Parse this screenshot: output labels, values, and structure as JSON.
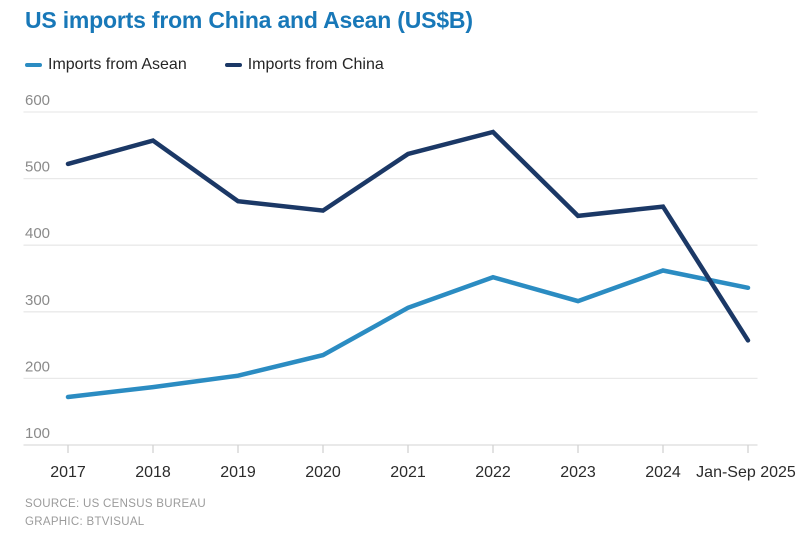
{
  "title": "US imports from China and Asean (US$B)",
  "legend": [
    {
      "label": "Imports from Asean",
      "color": "#2b8cc2"
    },
    {
      "label": "Imports from China",
      "color": "#1b3866"
    }
  ],
  "source": {
    "line1": "SOURCE: US CENSUS BUREAU",
    "line2": "GRAPHIC: BTVISUAL"
  },
  "colors": {
    "title_blue": "#1878b8",
    "asean_line": "#2b8cc2",
    "china_line": "#1b3866",
    "gridline": "#e9e9e9",
    "baseline": "#dcdcdc",
    "tick": "#cfcfcf",
    "y_label": "#8a8a8a",
    "x_label": "#2b2b2b",
    "background": "#ffffff"
  },
  "chart_data": {
    "type": "line",
    "title": "US imports from China and Asean (US$B)",
    "categories": [
      "2017",
      "2018",
      "2019",
      "2020",
      "2021",
      "2022",
      "2023",
      "2024",
      "Jan-Sep 2025"
    ],
    "series": [
      {
        "name": "Imports from Asean",
        "color": "#2b8cc2",
        "values": [
          172,
          187,
          204,
          235,
          306,
          352,
          316,
          362,
          336
        ]
      },
      {
        "name": "Imports from China",
        "color": "#1b3866",
        "values": [
          522,
          557,
          466,
          452,
          537,
          570,
          444,
          458,
          257
        ]
      }
    ],
    "xlabel": "",
    "ylabel": "",
    "ylim": [
      100,
      600
    ],
    "yticks": [
      100,
      200,
      300,
      400,
      500,
      600
    ],
    "grid": "horizontal",
    "legend_position": "top"
  }
}
